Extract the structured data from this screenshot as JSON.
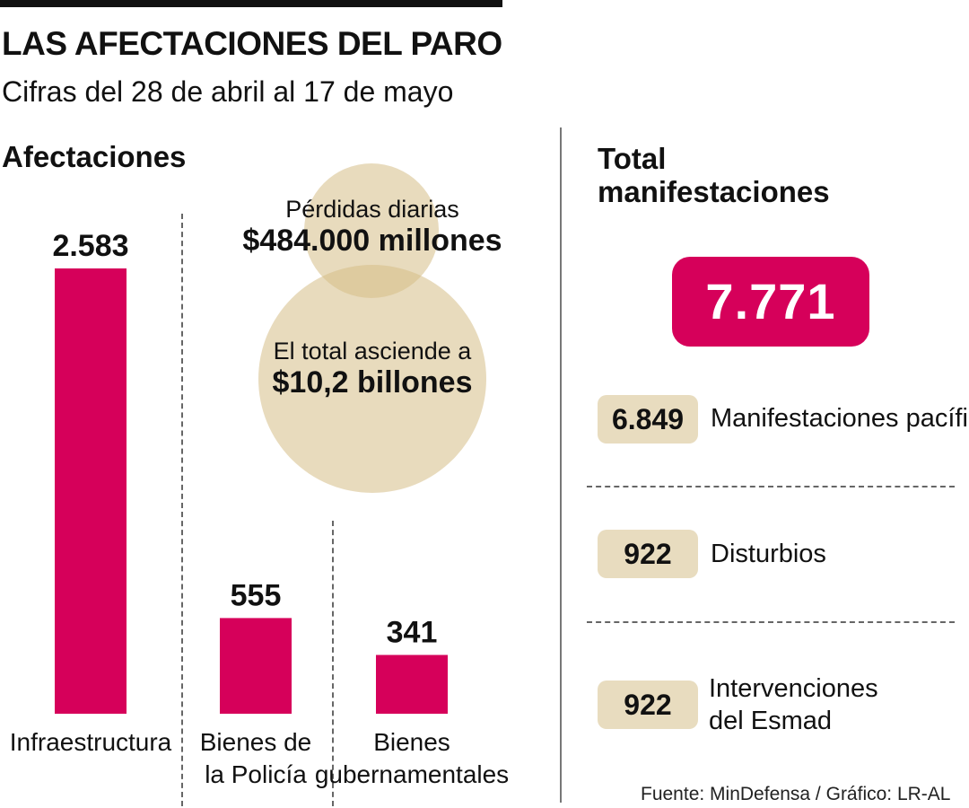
{
  "header": {
    "title": "LAS AFECTACIONES DEL PARO",
    "subtitle": "Cifras del 28 de abril al 17 de mayo"
  },
  "left_section_title": "Afectaciones",
  "losses": {
    "daily_label": "Pérdidas diarias",
    "daily_value": "$484.000 millones",
    "total_label": "El total asciende a",
    "total_value": "$10,2 billones"
  },
  "right_section": {
    "title_line1": "Total",
    "title_line2": "manifestaciones",
    "total": "7.771",
    "items": [
      {
        "value": "6.849",
        "label": "Manifestaciones pacíficas"
      },
      {
        "value": "922",
        "label": "Disturbios"
      },
      {
        "value": "922",
        "label_line1": "Intervenciones",
        "label_line2": "del Esmad"
      }
    ]
  },
  "source": "Fuente: MinDefensa / Gráfico: LR-AL",
  "colors": {
    "bar": "#d6005a",
    "badge": "#d6005a",
    "pill": "#e8dcbf",
    "circle": "#d6be87"
  },
  "chart_data": {
    "type": "bar",
    "title": "Afectaciones",
    "categories": [
      "Infraestructura",
      "Bienes de la Policía",
      "Bienes gubernamentales"
    ],
    "category_lines": [
      [
        "Infraestructura"
      ],
      [
        "Bienes de",
        "la Policía"
      ],
      [
        "Bienes",
        "gubernamentales"
      ]
    ],
    "values": [
      2583,
      555,
      341
    ],
    "value_labels": [
      "2.583",
      "555",
      "341"
    ]
  }
}
